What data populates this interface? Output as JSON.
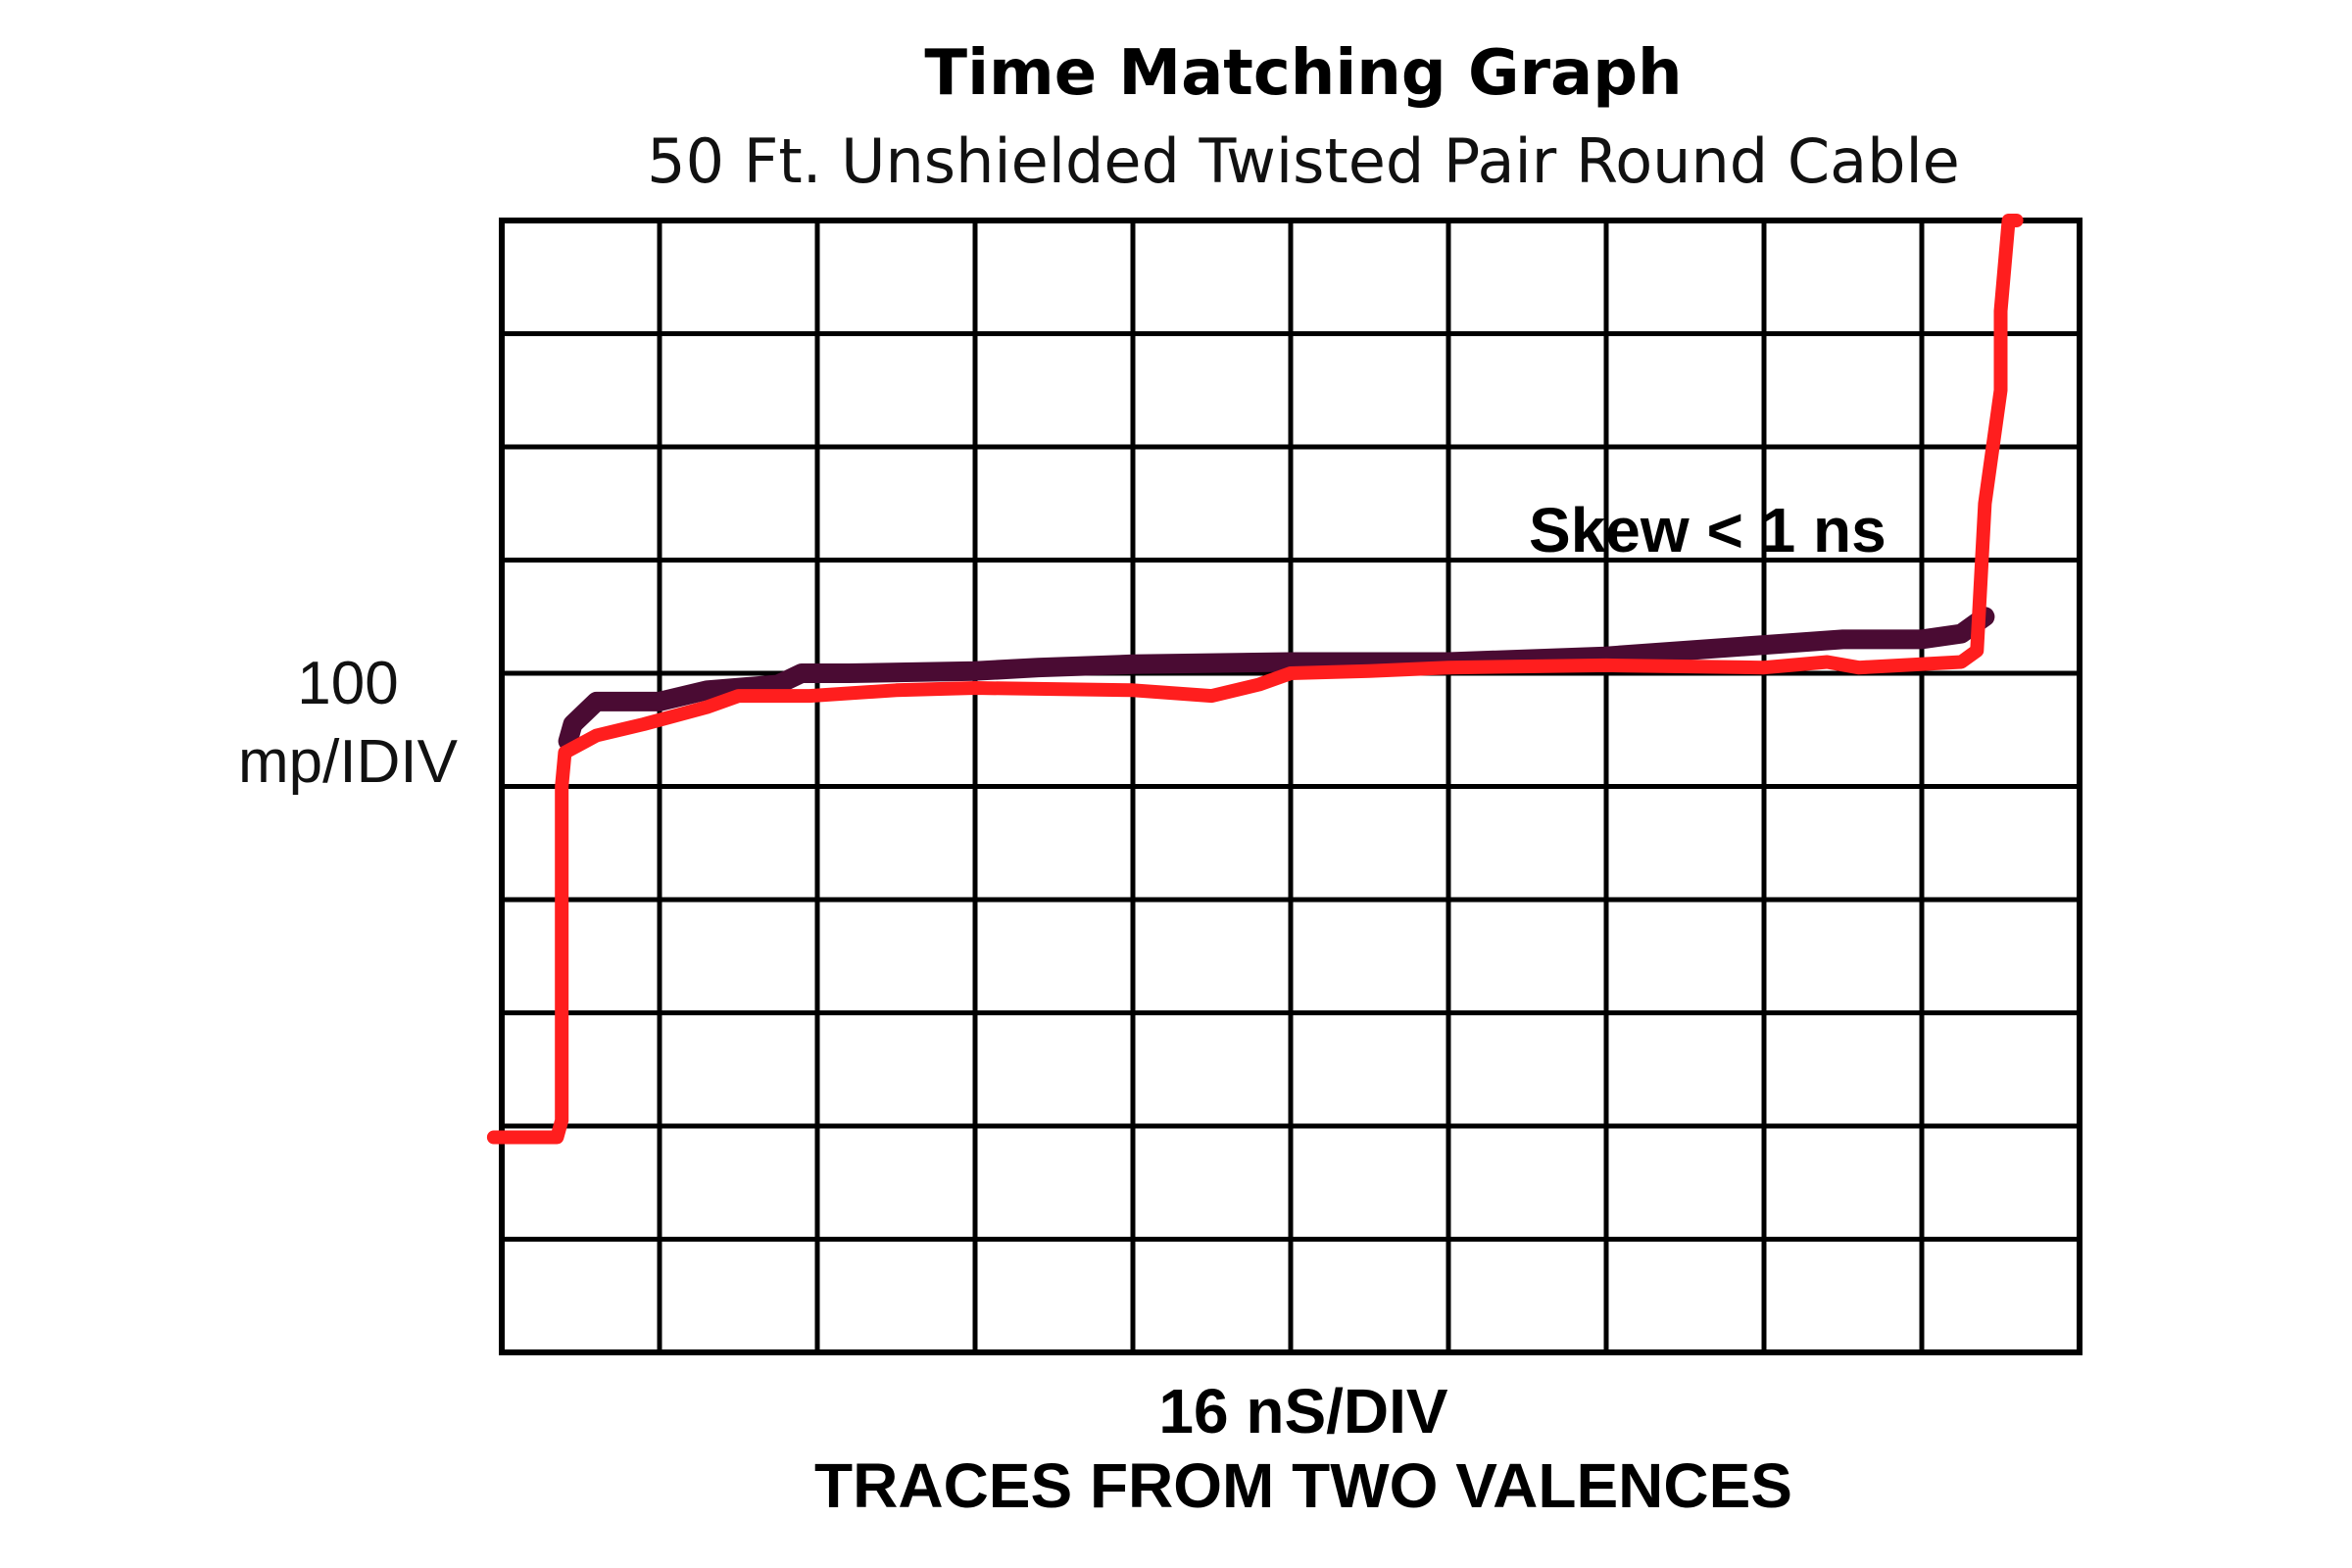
{
  "chart_data": {
    "type": "line",
    "title": "Time Matching Graph",
    "subtitle": "50 Ft. Unshielded Twisted Pair Round Cable",
    "xlabel": [
      "16 nS/DIV",
      "TRACES FROM TWO VALENCES"
    ],
    "ylabel": [
      "100",
      "mp/IDIV"
    ],
    "annotation": "Skew < 1 ns",
    "grid": true,
    "xlim": [
      0,
      10
    ],
    "ylim": [
      0,
      10
    ],
    "series": [
      {
        "color": "#4a0b33",
        "x": [
          0.42,
          0.45,
          0.6,
          1.0,
          1.3,
          1.75,
          1.9,
          2.2,
          3.0,
          3.4,
          4.0,
          5.0,
          6.0,
          7.0,
          8.0,
          8.5,
          9.0,
          9.25,
          9.4
        ],
        "y": [
          5.4,
          5.55,
          5.75,
          5.75,
          5.85,
          5.9,
          6.0,
          6.0,
          6.02,
          6.05,
          6.08,
          6.1,
          6.1,
          6.15,
          6.25,
          6.3,
          6.3,
          6.35,
          6.5
        ]
      },
      {
        "color": "#ff1e1e",
        "x": [
          -0.05,
          0.35,
          0.38,
          0.38,
          0.38,
          0.4,
          0.6,
          0.9,
          1.3,
          1.5,
          1.95,
          2.5,
          3.0,
          4.0,
          4.5,
          4.8,
          5.0,
          5.5,
          6.0,
          7.0,
          8.0,
          8.4,
          8.6,
          9.25,
          9.35,
          9.4,
          9.5,
          9.5,
          9.55,
          9.6
        ],
        "y": [
          1.9,
          1.9,
          2.05,
          3.5,
          5.0,
          5.3,
          5.45,
          5.55,
          5.7,
          5.8,
          5.8,
          5.85,
          5.87,
          5.85,
          5.8,
          5.9,
          6.0,
          6.02,
          6.05,
          6.07,
          6.05,
          6.1,
          6.05,
          6.1,
          6.2,
          7.5,
          8.5,
          9.2,
          10.0,
          10.0
        ]
      }
    ]
  }
}
